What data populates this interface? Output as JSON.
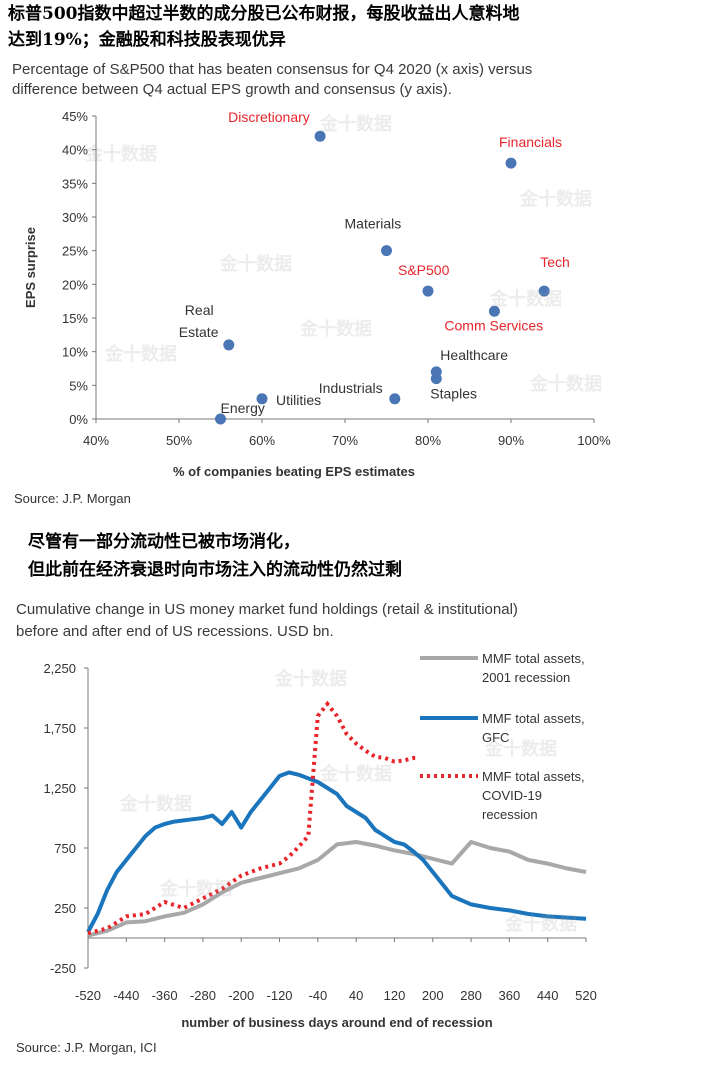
{
  "top": {
    "cn_title_line1": "标普500指数中超过半数的成分股已公布财报，每股收益出人意料地",
    "cn_title_line2": "达到19%；金融股和科技股表现优异",
    "subtitle_line1": "Percentage of S&P500 that has beaten consensus for Q4 2020 (x axis) versus",
    "subtitle_line2": "difference between Q4 actual EPS growth and consensus (y axis).",
    "source": "Source: J.P. Morgan"
  },
  "bottom": {
    "cn_title_line1": "尽管有一部分流动性已被市场消化，",
    "cn_title_line2": "但此前在经济衰退时向市场注入的流动性仍然过剩",
    "subtitle_line1": "Cumulative change in US money market fund holdings (retail & institutional)",
    "subtitle_line2": "before and after end of US recessions. USD bn.",
    "source": "Source: J.P. Morgan, ICI"
  },
  "watermark": "金十数据",
  "colors": {
    "point": "#4a76b6",
    "label_red": "#e8252a",
    "label_dark": "#333333",
    "series_2001": "#a8a8a8",
    "series_gfc": "#1b75bc",
    "series_covid": "#e8252a"
  },
  "chart_data": [
    {
      "type": "scatter",
      "xlabel": "% of companies beating EPS estimates",
      "ylabel": "EPS surprise",
      "xlim": [
        0.4,
        1.0
      ],
      "ylim": [
        0.0,
        0.45
      ],
      "xticks": [
        "40%",
        "50%",
        "60%",
        "70%",
        "80%",
        "90%",
        "100%"
      ],
      "yticks": [
        "0%",
        "5%",
        "10%",
        "15%",
        "20%",
        "25%",
        "30%",
        "35%",
        "40%",
        "45%"
      ],
      "grid": false,
      "points": [
        {
          "name": "Discretionary",
          "x": 0.67,
          "y": 0.42,
          "label_color": "red"
        },
        {
          "name": "Financials",
          "x": 0.9,
          "y": 0.38,
          "label_color": "red"
        },
        {
          "name": "Materials",
          "x": 0.75,
          "y": 0.25,
          "label_color": "dark"
        },
        {
          "name": "S&P500",
          "x": 0.8,
          "y": 0.19,
          "label_color": "red"
        },
        {
          "name": "Tech",
          "x": 0.94,
          "y": 0.19,
          "label_color": "red"
        },
        {
          "name": "Comm Services",
          "x": 0.88,
          "y": 0.16,
          "label_color": "red"
        },
        {
          "name": "Real Estate",
          "x": 0.56,
          "y": 0.11,
          "label_color": "dark"
        },
        {
          "name": "Healthcare",
          "x": 0.81,
          "y": 0.07,
          "label_color": "dark"
        },
        {
          "name": "Staples",
          "x": 0.81,
          "y": 0.06,
          "label_color": "dark"
        },
        {
          "name": "Industrials",
          "x": 0.76,
          "y": 0.03,
          "label_color": "dark"
        },
        {
          "name": "Utilities",
          "x": 0.6,
          "y": 0.03,
          "label_color": "dark"
        },
        {
          "name": "Energy",
          "x": 0.55,
          "y": 0.0,
          "label_color": "dark"
        }
      ]
    },
    {
      "type": "line",
      "xlabel": "number of business days around end of recession",
      "ylabel": "",
      "xlim": [
        -520,
        520
      ],
      "ylim": [
        -250,
        2250
      ],
      "xticks": [
        -520,
        -440,
        -360,
        -280,
        -200,
        -120,
        -40,
        40,
        120,
        200,
        280,
        360,
        440,
        520
      ],
      "yticks": [
        "-250",
        "250",
        "750",
        "1,250",
        "1,750",
        "2,250"
      ],
      "grid": false,
      "legend": "right",
      "series": [
        {
          "name": "MMF total assets, 2001 recession",
          "style": "solid-gray",
          "x": [
            -520,
            -480,
            -440,
            -400,
            -360,
            -320,
            -280,
            -240,
            -200,
            -160,
            -120,
            -80,
            -40,
            0,
            40,
            80,
            120,
            160,
            200,
            240,
            280,
            320,
            360,
            400,
            440,
            480,
            520
          ],
          "y": [
            20,
            60,
            130,
            140,
            180,
            210,
            280,
            380,
            460,
            500,
            540,
            580,
            650,
            780,
            800,
            770,
            730,
            700,
            660,
            620,
            800,
            750,
            720,
            650,
            620,
            580,
            550
          ]
        },
        {
          "name": "MMF total assets, GFC",
          "style": "solid-blue",
          "x": [
            -520,
            -500,
            -480,
            -460,
            -440,
            -420,
            -400,
            -380,
            -360,
            -340,
            -320,
            -300,
            -280,
            -260,
            -240,
            -220,
            -200,
            -180,
            -160,
            -140,
            -120,
            -100,
            -80,
            -60,
            -40,
            -20,
            0,
            20,
            40,
            60,
            80,
            100,
            120,
            140,
            160,
            180,
            200,
            240,
            280,
            320,
            360,
            400,
            440,
            480,
            520
          ],
          "y": [
            50,
            200,
            400,
            550,
            650,
            750,
            850,
            920,
            950,
            970,
            980,
            990,
            1000,
            1020,
            950,
            1050,
            920,
            1050,
            1150,
            1250,
            1350,
            1380,
            1360,
            1330,
            1300,
            1250,
            1200,
            1100,
            1050,
            1000,
            900,
            850,
            800,
            780,
            720,
            650,
            550,
            350,
            280,
            250,
            230,
            200,
            180,
            170,
            160
          ]
        },
        {
          "name": "MMF total assets, COVID-19 recession",
          "style": "dotted-red",
          "x": [
            -520,
            -480,
            -440,
            -400,
            -360,
            -320,
            -280,
            -240,
            -200,
            -160,
            -120,
            -100,
            -80,
            -60,
            -40,
            -20,
            0,
            20,
            40,
            60,
            80,
            100,
            120,
            140,
            160,
            170
          ],
          "y": [
            40,
            80,
            180,
            200,
            300,
            250,
            330,
            410,
            520,
            580,
            620,
            680,
            760,
            850,
            1850,
            1950,
            1850,
            1700,
            1620,
            1560,
            1510,
            1500,
            1470,
            1480,
            1500,
            1500
          ]
        }
      ]
    }
  ]
}
